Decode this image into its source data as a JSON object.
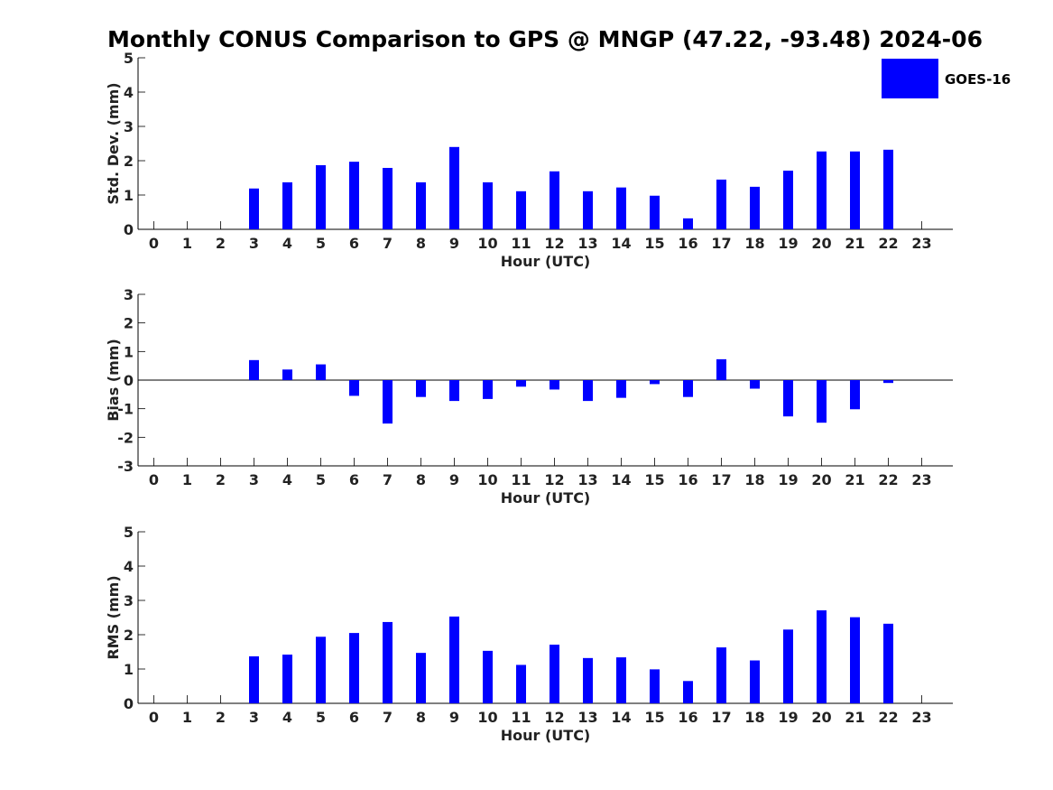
{
  "chart_data": {
    "title": "Monthly CONUS Comparison to GPS @ MNGP (47.22, -93.48) 2024-06",
    "legend": {
      "label": "GOES-16",
      "color": "#0000ff",
      "placement": "top-right"
    },
    "x_ticks": [
      "0",
      "1",
      "2",
      "3",
      "4",
      "5",
      "6",
      "7",
      "8",
      "9",
      "10",
      "11",
      "12",
      "13",
      "14",
      "15",
      "16",
      "17",
      "18",
      "19",
      "20",
      "21",
      "22",
      "23"
    ],
    "panels": [
      {
        "type": "bar",
        "ylabel": "Std. Dev. (mm)",
        "xlabel": "Hour (UTC)",
        "ylim": [
          0,
          5
        ],
        "y_ticks": [
          "0",
          "1",
          "2",
          "3",
          "4",
          "5"
        ],
        "series": [
          {
            "name": "GOES-16",
            "color": "#0000ff",
            "values": [
              null,
              null,
              null,
              1.19,
              1.37,
              1.87,
              1.97,
              1.79,
              1.37,
              2.4,
              1.37,
              1.11,
              1.69,
              1.11,
              1.22,
              0.98,
              0.32,
              1.45,
              1.24,
              1.71,
              2.27,
              2.27,
              2.32,
              null
            ]
          }
        ]
      },
      {
        "type": "bar",
        "ylabel": "Bias (mm)",
        "xlabel": "Hour (UTC)",
        "ylim": [
          -3,
          3
        ],
        "y_ticks": [
          "-3",
          "-2",
          "-1",
          "0",
          "1",
          "2",
          "3"
        ],
        "series": [
          {
            "name": "GOES-16",
            "color": "#0000ff",
            "values": [
              null,
              null,
              null,
              0.7,
              0.37,
              0.55,
              -0.55,
              -1.52,
              -0.59,
              -0.73,
              -0.66,
              -0.23,
              -0.33,
              -0.73,
              -0.62,
              -0.14,
              -0.59,
              0.73,
              -0.3,
              -1.27,
              -1.49,
              -1.02,
              -0.1,
              null
            ]
          }
        ]
      },
      {
        "type": "bar",
        "ylabel": "RMS (mm)",
        "xlabel": "Hour (UTC)",
        "ylim": [
          0,
          5
        ],
        "y_ticks": [
          "0",
          "1",
          "2",
          "3",
          "4",
          "5"
        ],
        "series": [
          {
            "name": "GOES-16",
            "color": "#0000ff",
            "values": [
              null,
              null,
              null,
              1.37,
              1.42,
              1.94,
              2.05,
              2.37,
              1.47,
              2.53,
              1.53,
              1.12,
              1.71,
              1.32,
              1.34,
              0.99,
              0.65,
              1.63,
              1.25,
              2.15,
              2.71,
              2.51,
              2.32,
              null
            ]
          }
        ]
      }
    ]
  }
}
